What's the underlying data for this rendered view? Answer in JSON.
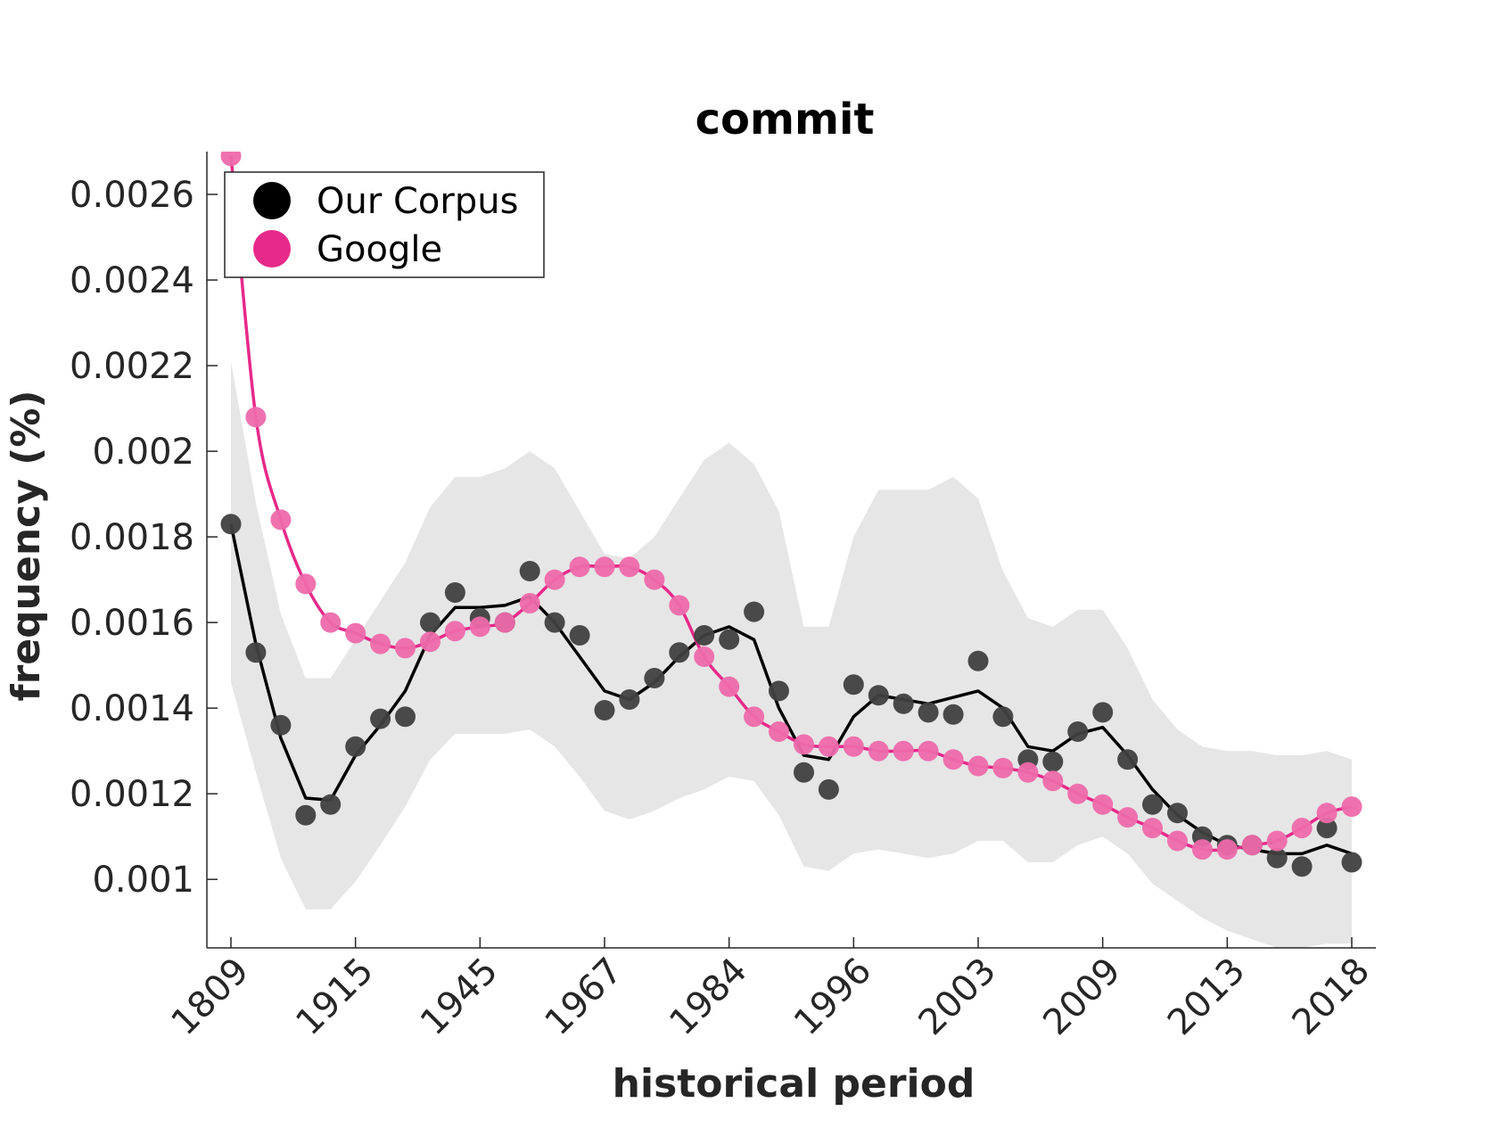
{
  "chart_data": {
    "type": "line",
    "title": "commit",
    "xlabel": "historical period",
    "ylabel": "frequency (%)",
    "categories": [
      "1809",
      "",
      "",
      "",
      "",
      "1915",
      "",
      "",
      "",
      "",
      "1945",
      "",
      "",
      "",
      "",
      "1967",
      "",
      "",
      "",
      "",
      "1984",
      "",
      "",
      "",
      "",
      "1996",
      "",
      "",
      "",
      "",
      "2003",
      "",
      "",
      "",
      "",
      "2009",
      "",
      "",
      "",
      "",
      "2013",
      "",
      "",
      "",
      "",
      "2018"
    ],
    "x_tick_labels": [
      "1809",
      "1915",
      "1945",
      "1967",
      "1984",
      "1996",
      "2003",
      "2009",
      "2013",
      "2018"
    ],
    "y_tick_labels": [
      "0.001",
      "0.0012",
      "0.0014",
      "0.0016",
      "0.0018",
      "0.002",
      "0.0022",
      "0.0024",
      "0.0026"
    ],
    "y_ticks": [
      0.001,
      0.0012,
      0.0014,
      0.0016,
      0.0018,
      0.002,
      0.0022,
      0.0024,
      0.0026
    ],
    "ylim": [
      0.00084,
      0.0027
    ],
    "legend_position": "top-left",
    "series": [
      {
        "name": "Our Corpus",
        "color": "#000000",
        "marker_color": "#404040",
        "points": [
          0.00183,
          0.00153,
          0.00136,
          0.00115,
          0.001175,
          0.00131,
          0.001375,
          0.00138,
          0.0016,
          0.00167,
          0.00161,
          0.0016,
          0.00172,
          0.0016,
          0.00157,
          0.001395,
          0.00142,
          0.00147,
          0.00153,
          0.00157,
          0.00156,
          0.001625,
          0.00144,
          0.00125,
          0.00121,
          0.001455,
          0.00143,
          0.00141,
          0.00139,
          0.001385,
          0.00151,
          0.00138,
          0.00128,
          0.001275,
          0.001345,
          0.00139,
          0.00128,
          0.001175,
          0.001155,
          0.0011,
          0.00108,
          0.00108,
          0.00105,
          0.00103,
          0.00112,
          0.00104
        ],
        "line": [
          0.00183,
          0.00155,
          0.00133,
          0.00119,
          0.001185,
          0.00129,
          0.00136,
          0.00144,
          0.00157,
          0.001635,
          0.001635,
          0.00164,
          0.00166,
          0.0016,
          0.00152,
          0.00144,
          0.00142,
          0.00146,
          0.00152,
          0.00157,
          0.00159,
          0.00156,
          0.0014,
          0.00129,
          0.00128,
          0.00138,
          0.00143,
          0.00142,
          0.00141,
          0.001425,
          0.00144,
          0.0014,
          0.00131,
          0.0013,
          0.00134,
          0.001355,
          0.00129,
          0.00121,
          0.00115,
          0.00111,
          0.00108,
          0.00107,
          0.00106,
          0.00106,
          0.00108,
          0.00106
        ]
      },
      {
        "name": "Google",
        "color": "#e7298a",
        "marker_color": "#ee6aab",
        "points": [
          0.00269,
          0.00208,
          0.00184,
          0.00169,
          0.0016,
          0.001575,
          0.00155,
          0.00154,
          0.001555,
          0.00158,
          0.00159,
          0.0016,
          0.001645,
          0.0017,
          0.00173,
          0.00173,
          0.00173,
          0.0017,
          0.00164,
          0.00152,
          0.00145,
          0.00138,
          0.001345,
          0.001315,
          0.00131,
          0.00131,
          0.0013,
          0.0013,
          0.0013,
          0.00128,
          0.001265,
          0.00126,
          0.00125,
          0.00123,
          0.0012,
          0.001175,
          0.001145,
          0.00112,
          0.00109,
          0.00107,
          0.00107,
          0.00108,
          0.00109,
          0.00112,
          0.001155,
          0.00117
        ]
      }
    ],
    "confidence_band": {
      "color": "#e6e6e6",
      "upper": [
        0.00221,
        0.00188,
        0.00162,
        0.00147,
        0.00147,
        0.00156,
        0.00165,
        0.00174,
        0.00187,
        0.00194,
        0.00194,
        0.00196,
        0.002,
        0.00196,
        0.00186,
        0.00176,
        0.00175,
        0.0018,
        0.00189,
        0.00198,
        0.00202,
        0.00197,
        0.00186,
        0.00159,
        0.00159,
        0.0018,
        0.00191,
        0.00191,
        0.00191,
        0.00194,
        0.00189,
        0.00172,
        0.00161,
        0.00159,
        0.00163,
        0.00163,
        0.00154,
        0.00142,
        0.00135,
        0.00131,
        0.0013,
        0.0013,
        0.00129,
        0.00129,
        0.0013,
        0.00128
      ],
      "lower": [
        0.00146,
        0.00125,
        0.00105,
        0.00093,
        0.00093,
        0.000995,
        0.00108,
        0.00117,
        0.00128,
        0.00134,
        0.00134,
        0.00134,
        0.00135,
        0.00131,
        0.00124,
        0.00116,
        0.00114,
        0.00116,
        0.00119,
        0.00121,
        0.00124,
        0.00123,
        0.00115,
        0.00103,
        0.00102,
        0.00106,
        0.00107,
        0.00106,
        0.00105,
        0.00106,
        0.00109,
        0.00109,
        0.00104,
        0.00104,
        0.00108,
        0.0011,
        0.00106,
        0.00099,
        0.00095,
        0.00091,
        0.00088,
        0.00086,
        0.00084,
        0.00084,
        0.00085,
        0.00085
      ]
    }
  }
}
